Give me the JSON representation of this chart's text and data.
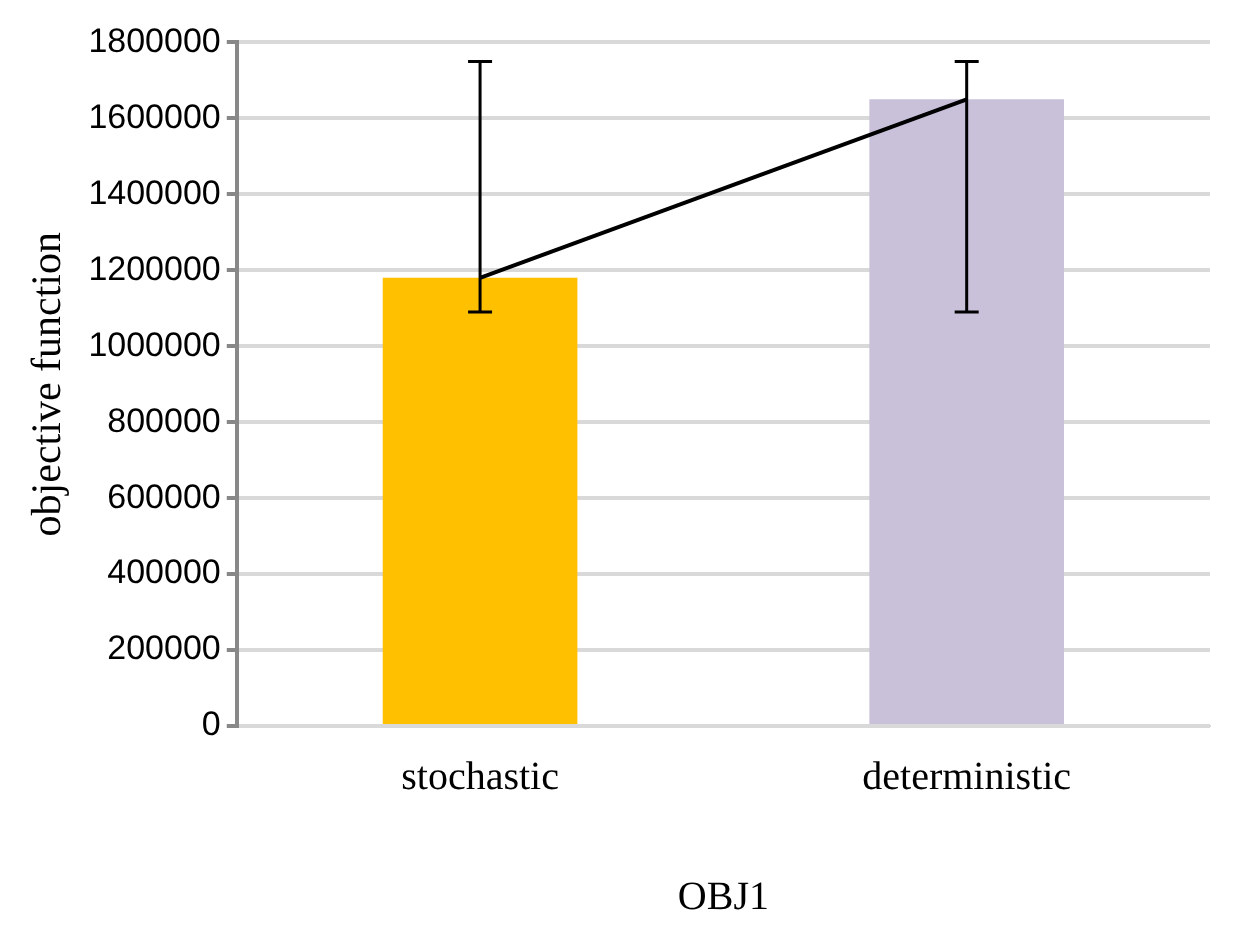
{
  "chart_data": {
    "type": "bar",
    "ylabel": "objective function",
    "xlabel": "OBJ1",
    "categories": [
      "stochastic",
      "deterministic"
    ],
    "series": [
      {
        "colors": [
          "#ffc000",
          "#c9c0da"
        ],
        "values": [
          1180000,
          1650000
        ],
        "errors": [
          [
            1090000,
            1750000
          ],
          [
            1090000,
            1750000
          ]
        ]
      },
      {
        "type": "line",
        "color": "#000000",
        "values": [
          1180000,
          1650000
        ]
      }
    ],
    "ylim": [
      0,
      1800000
    ],
    "yticks": [
      0,
      200000,
      400000,
      600000,
      800000,
      1000000,
      1200000,
      1400000,
      1600000,
      1800000
    ],
    "grid": "y",
    "legend": false,
    "marker": "none"
  }
}
